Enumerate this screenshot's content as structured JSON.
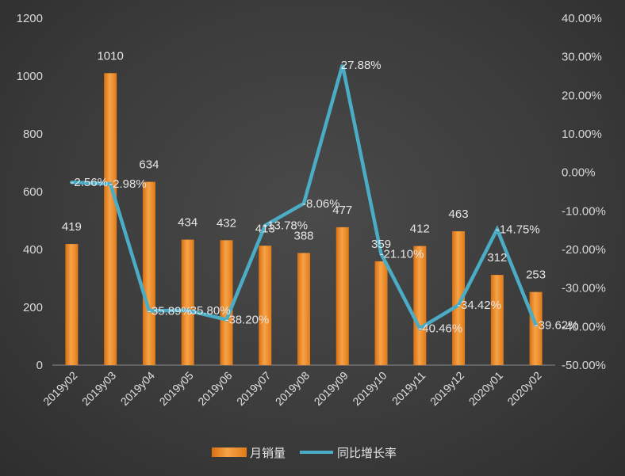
{
  "chart_data": {
    "type": "bar",
    "categories": [
      "2019y02",
      "2019y03",
      "2019y04",
      "2019y05",
      "2019y06",
      "2019y07",
      "2019y08",
      "2019y09",
      "2019y10",
      "2019y11",
      "2019y12",
      "2020y01",
      "2020y02"
    ],
    "series": [
      {
        "name": "月销量",
        "type": "bar",
        "axis": "left",
        "values": [
          419,
          1010,
          634,
          434,
          432,
          413,
          388,
          477,
          359,
          412,
          463,
          312,
          253
        ],
        "labels": [
          "419",
          "1010",
          "634",
          "434",
          "432",
          "413",
          "388",
          "477",
          "359",
          "412",
          "463",
          "312",
          "253"
        ]
      },
      {
        "name": "同比增长率",
        "type": "line",
        "axis": "right",
        "values": [
          -2.56,
          -2.98,
          -35.89,
          -35.8,
          -38.2,
          -13.78,
          -8.06,
          27.88,
          -21.1,
          -40.46,
          -34.42,
          -14.75,
          -39.62
        ],
        "labels": [
          "-2.56%",
          "-2.98%",
          "-35.89%",
          "-35.80%",
          "-38.20%",
          "-13.78%",
          "-8.06%",
          "27.88%",
          "-21.10%",
          "-40.46%",
          "-34.42%",
          "-14.75%",
          "-39.62%"
        ]
      }
    ],
    "left_axis": {
      "min": 0,
      "max": 1200,
      "ticks": [
        "0",
        "200",
        "400",
        "600",
        "800",
        "1000",
        "1200"
      ]
    },
    "right_axis": {
      "min": -50,
      "max": 40,
      "ticks": [
        "-50.00%",
        "-40.00%",
        "-30.00%",
        "-20.00%",
        "-10.00%",
        "0.00%",
        "10.00%",
        "20.00%",
        "30.00%",
        "40.00%"
      ]
    },
    "grid": false,
    "legend_position": "bottom",
    "colors": {
      "bar": "#f0851e",
      "bar_light": "#f7a347",
      "line": "#4bacc6",
      "text": "#d9d9d9"
    }
  }
}
